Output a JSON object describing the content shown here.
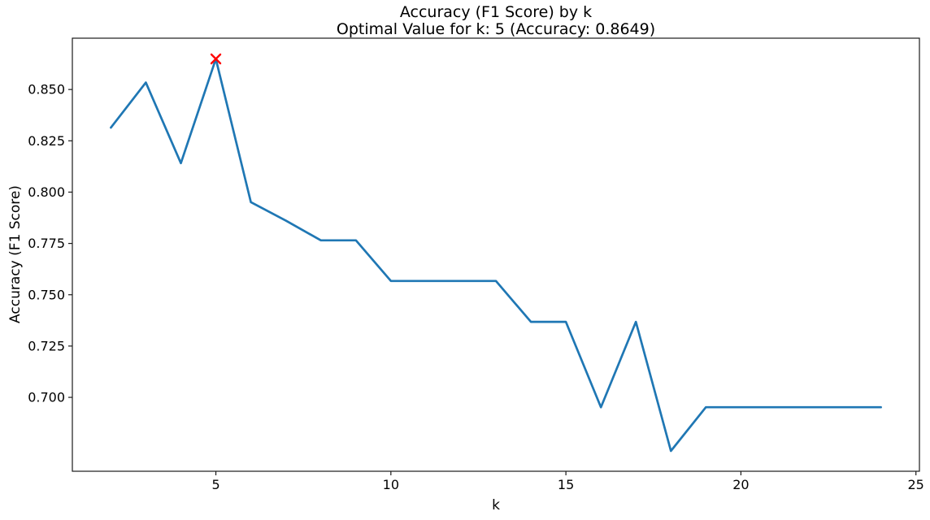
{
  "chart_data": {
    "type": "line",
    "title": "Accuracy (F1 Score) by k",
    "subtitle": "Optimal Value for k: 5 (Accuracy: 0.8649)",
    "xlabel": "k",
    "ylabel": "Accuracy (F1 Score)",
    "x": [
      2,
      3,
      4,
      5,
      6,
      7,
      8,
      9,
      10,
      11,
      12,
      13,
      14,
      15,
      16,
      17,
      18,
      19,
      20,
      21,
      22,
      23,
      24
    ],
    "y": [
      0.8314,
      0.8534,
      0.8141,
      0.8649,
      0.7951,
      0.7861,
      0.7765,
      0.7765,
      0.7567,
      0.7567,
      0.7567,
      0.7567,
      0.7368,
      0.7368,
      0.6952,
      0.7368,
      0.6739,
      0.6952,
      0.6952,
      0.6952,
      0.6952,
      0.6952,
      0.6952
    ],
    "optimal_point": {
      "k": 5,
      "accuracy": 0.8649
    },
    "xlim": [
      0.9,
      25.1
    ],
    "ylim": [
      0.664,
      0.875
    ],
    "xtick_values": [
      5,
      10,
      15,
      20,
      25
    ],
    "xtick_labels": [
      "5",
      "10",
      "15",
      "20",
      "25"
    ],
    "ytick_values": [
      0.7,
      0.725,
      0.75,
      0.775,
      0.8,
      0.825,
      0.85
    ],
    "ytick_labels": [
      "0.700",
      "0.725",
      "0.750",
      "0.775",
      "0.800",
      "0.825",
      "0.850"
    ],
    "grid": false,
    "legend": null,
    "colors": {
      "line": "#1f77b4",
      "marker": "#ff0000",
      "axis": "#1a1a1a",
      "text": "#000000",
      "background": "#ffffff"
    }
  }
}
